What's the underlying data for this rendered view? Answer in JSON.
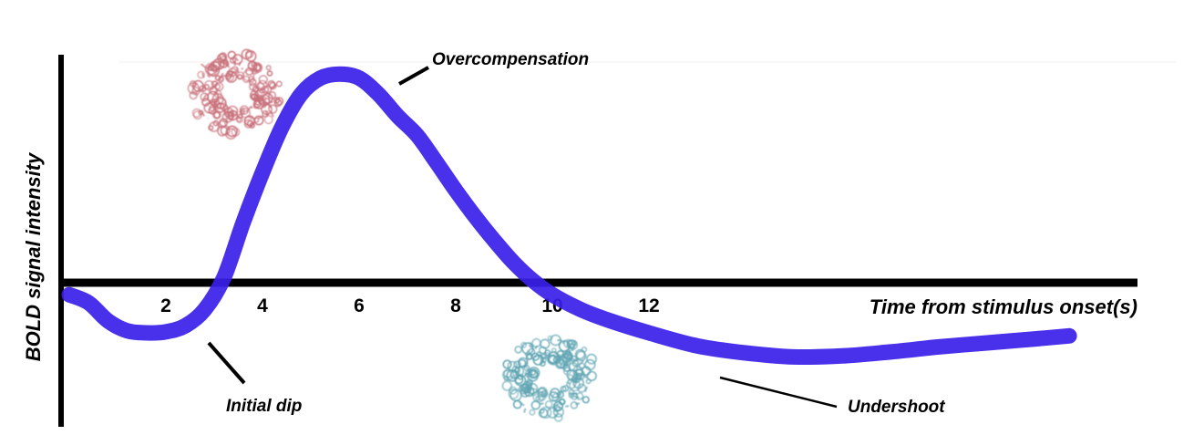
{
  "chart_data": {
    "type": "line",
    "title": "",
    "xlabel": "Time from stimulus onset(s)",
    "ylabel": "BOLD signal intensity",
    "x_ticks": [
      2,
      4,
      6,
      8,
      10,
      12
    ],
    "xlim": [
      -0.2,
      21.0
    ],
    "ylim": [
      -1.0,
      2.2
    ],
    "grid": false,
    "legend": "none",
    "series": [
      {
        "color": "#3a1ee8",
        "x": [
          0.0,
          0.4,
          0.8,
          1.2,
          1.6,
          2.0,
          2.4,
          2.8,
          3.2,
          3.6,
          4.0,
          4.4,
          4.8,
          5.2,
          5.6,
          6.0,
          6.4,
          6.8,
          7.2,
          7.6,
          8.0,
          8.4,
          8.8,
          9.2,
          9.6,
          10.0,
          10.6,
          11.2,
          12.0,
          13.0,
          14.0,
          15.0,
          16.0,
          17.0,
          18.0,
          19.0,
          20.0,
          20.7
        ],
        "values": [
          -0.12,
          -0.2,
          -0.38,
          -0.48,
          -0.5,
          -0.49,
          -0.43,
          -0.27,
          0.05,
          0.6,
          1.1,
          1.55,
          1.88,
          2.04,
          2.08,
          2.04,
          1.88,
          1.66,
          1.47,
          1.2,
          0.92,
          0.66,
          0.42,
          0.2,
          0.02,
          -0.12,
          -0.27,
          -0.38,
          -0.5,
          -0.63,
          -0.7,
          -0.74,
          -0.73,
          -0.69,
          -0.64,
          -0.6,
          -0.56,
          -0.53
        ]
      }
    ],
    "annotations": [
      {
        "text": "Overcompensation",
        "x": 6.4,
        "y": 1.88
      },
      {
        "text": "Initial dip",
        "x": 2.8,
        "y": -0.44
      },
      {
        "text": "Undershoot",
        "x": 13.7,
        "y": -0.68
      }
    ]
  },
  "illustrations": {
    "top": {
      "icon": "protein-structure-icon",
      "color": "#c8707a"
    },
    "bottom": {
      "icon": "protein-structure-icon",
      "color": "#5fa4b2"
    }
  }
}
